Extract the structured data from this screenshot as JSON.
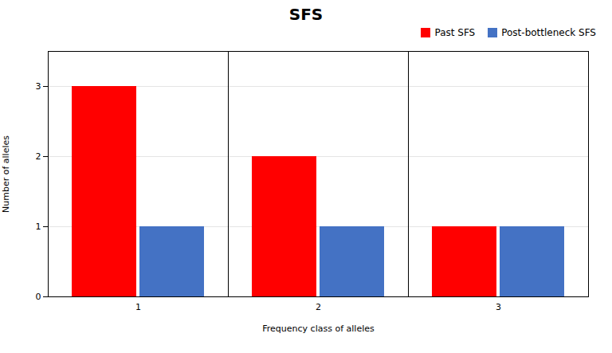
{
  "chart_data": {
    "type": "bar",
    "title": "SFS",
    "categories": [
      1,
      2,
      3
    ],
    "series": [
      {
        "name": "Past SFS",
        "color": "#FF0000",
        "values": [
          3,
          2,
          1
        ]
      },
      {
        "name": "Post-bottleneck SFS",
        "color": "#4472C4",
        "values": [
          1,
          1,
          1
        ]
      }
    ],
    "xlabel": "Frequency class of alleles",
    "ylabel": "Number of alleles",
    "ylim": [
      0,
      3.5
    ],
    "yticks": [
      0,
      1,
      2,
      3
    ],
    "grid": true,
    "legend": "upper right"
  }
}
